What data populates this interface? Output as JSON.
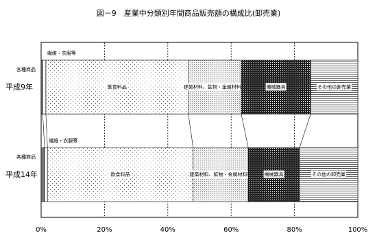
{
  "chart_data": {
    "type": "stacked-bar-100",
    "title": "図－9　産業中分類別年間商品販売額の構成比(卸売業)",
    "categories": [
      "平成9年",
      "平成14年"
    ],
    "series": [
      {
        "name": "各種商品",
        "color": "#777777",
        "values": [
          0.5,
          1.1
        ]
      },
      {
        "name": "繊維・衣服等",
        "color": "#bbbbbb",
        "values": [
          1.0,
          0.9
        ]
      },
      {
        "name": "飲食料品",
        "color": "#666666",
        "values": [
          45.0,
          46.0
        ]
      },
      {
        "name": "建築材料、鉱物・金属材料等",
        "color": "#888888",
        "values": [
          16.7,
          17.4
        ]
      },
      {
        "name": "機械器具",
        "color": "#222222",
        "values": [
          21.9,
          16.2
        ]
      },
      {
        "name": "その他の卸売業",
        "color": "#555555",
        "values": [
          14.9,
          18.4
        ]
      }
    ],
    "xlim": [
      0,
      100
    ],
    "xticks": [
      {
        "value": 0,
        "label": "0%"
      },
      {
        "value": 20,
        "label": "20%"
      },
      {
        "value": 40,
        "label": "40%"
      },
      {
        "value": 60,
        "label": "60%"
      },
      {
        "value": 80,
        "label": "80%"
      },
      {
        "value": 100,
        "label": "100%"
      }
    ],
    "grid": true
  }
}
